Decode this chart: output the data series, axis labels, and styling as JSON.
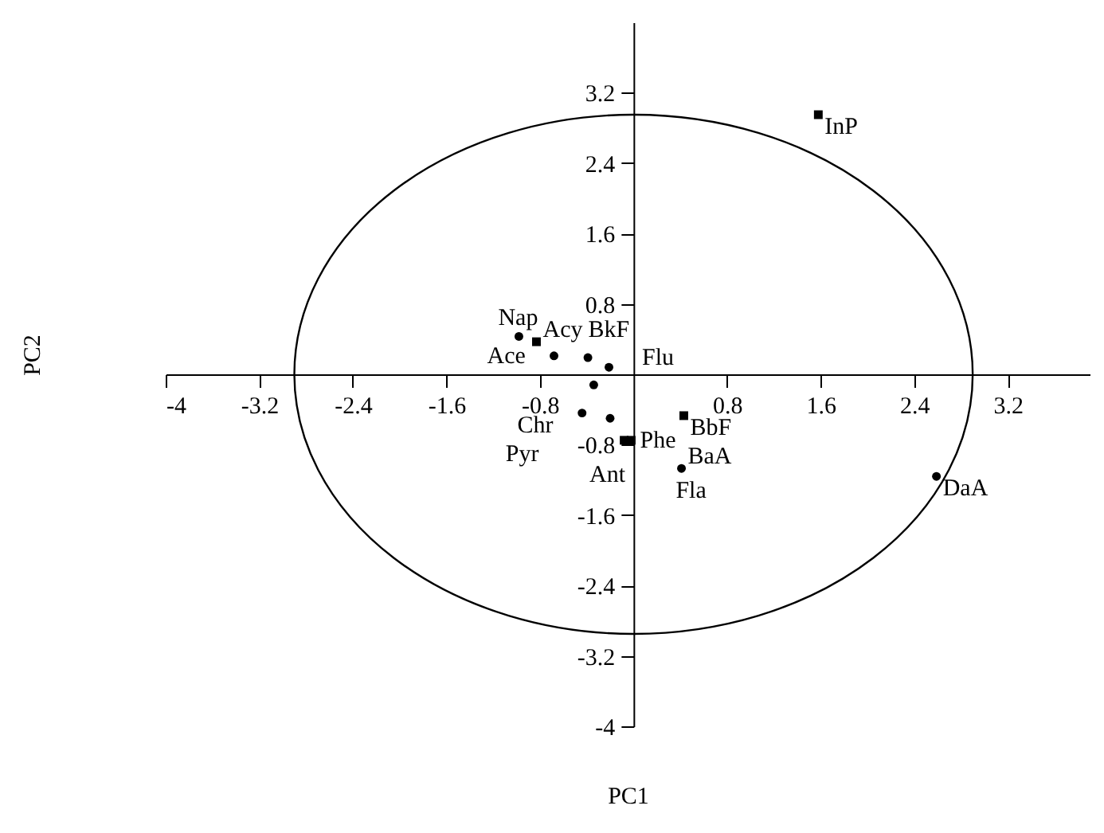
{
  "chart_data": {
    "type": "scatter",
    "xlabel": "PC1",
    "xlim": [
      -4,
      3.9
    ],
    "ylim": [
      -4,
      4
    ],
    "xticks": [
      -4,
      -3.2,
      -2.4,
      -1.6,
      -0.8,
      0.8,
      1.6,
      2.4,
      3.2
    ],
    "yticks": [
      -4,
      -3.2,
      -2.4,
      -1.6,
      -0.8,
      0.8,
      1.6,
      2.4,
      3.2
    ],
    "grid": false,
    "series": [
      {
        "marker": "circle",
        "color": "#000000",
        "x": [
          -0.98,
          -0.68,
          -0.39,
          -0.21,
          -0.34,
          -0.44,
          -0.2,
          0.41,
          2.59
        ],
        "values": [
          0.43,
          0.21,
          0.19,
          0.08,
          -0.12,
          -0.44,
          -0.5,
          -1.07,
          -1.16
        ]
      },
      {
        "marker": "square",
        "color": "#000000",
        "x": [
          1.58,
          -0.83,
          0.43,
          -0.08,
          -0.02
        ],
        "values": [
          2.95,
          0.37,
          -0.47,
          -0.75,
          -0.75
        ]
      }
    ],
    "annotations": [
      {
        "text": "Nap",
        "x": -0.98,
        "y": 0.43
      },
      {
        "text": "Acy",
        "x": -0.83,
        "y": 0.37
      },
      {
        "text": "Ace",
        "x": -0.68,
        "y": 0.21
      },
      {
        "text": "Flu",
        "x": -0.39,
        "y": 0.19
      },
      {
        "text": "BkF",
        "x": -0.21,
        "y": 0.08
      },
      {
        "text": "Chr",
        "x": -0.34,
        "y": -0.12
      },
      {
        "text": "Pyr",
        "x": -0.44,
        "y": -0.44
      },
      {
        "text": "Ant",
        "x": -0.2,
        "y": -0.5
      },
      {
        "text": "Phe",
        "x": -0.08,
        "y": -0.75
      },
      {
        "text": "Fla",
        "x": -0.02,
        "y": -0.75
      },
      {
        "text": "BaA",
        "x": 0.41,
        "y": -1.07
      },
      {
        "text": "BbF",
        "x": 0.43,
        "y": -0.47
      },
      {
        "text": "InP",
        "x": 1.58,
        "y": 2.95
      },
      {
        "text": "DaA",
        "x": 2.59,
        "y": -1.16
      },
      "PC2"
    ]
  }
}
